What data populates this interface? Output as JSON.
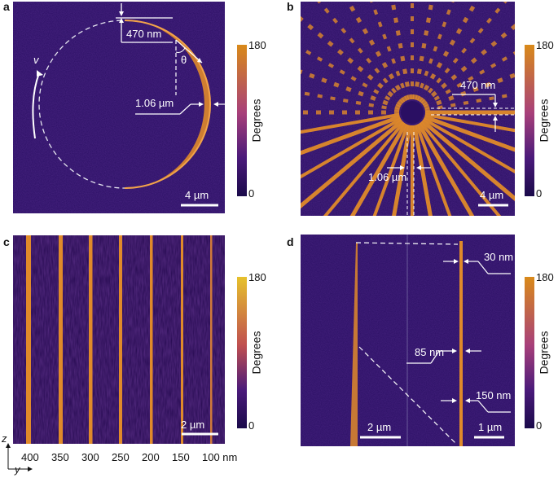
{
  "panels": {
    "a": {
      "label": "a",
      "annotations": {
        "size_top": "470 nm",
        "theta": "θ",
        "v": "v",
        "width": "1.06 µm",
        "scale": "4 µm"
      },
      "colorbar": {
        "max": "180",
        "min": "0",
        "unit": "Degrees"
      }
    },
    "b": {
      "label": "b",
      "annotations": {
        "size_top": "470 nm",
        "width": "1.06 µm",
        "scale": "4 µm"
      },
      "colorbar": {
        "max": "180",
        "min": "0",
        "unit": "Degrees"
      }
    },
    "c": {
      "label": "c",
      "annotations": {
        "scale": "2 µm"
      },
      "line_widths": [
        "400",
        "350",
        "300",
        "250",
        "200",
        "150",
        "100 nm"
      ],
      "colorbar": {
        "max": "180",
        "min": "0",
        "unit": "Degrees"
      },
      "axes": {
        "z": "z",
        "y": "y"
      }
    },
    "d": {
      "label": "d",
      "annotations": {
        "w30": "30 nm",
        "w85": "85 nm",
        "w150": "150 nm",
        "scale_left": "2 µm",
        "scale_right": "1 µm"
      },
      "colorbar": {
        "max": "180",
        "min": "0",
        "unit": "Degrees"
      }
    }
  },
  "colors": {
    "background": "#2a0f63",
    "line": "#e08a2a",
    "colorbar_top": "#d98a1a",
    "colorbar_top_c": "#e6c12c",
    "colorbar_bottom": "#1a0a4a"
  }
}
